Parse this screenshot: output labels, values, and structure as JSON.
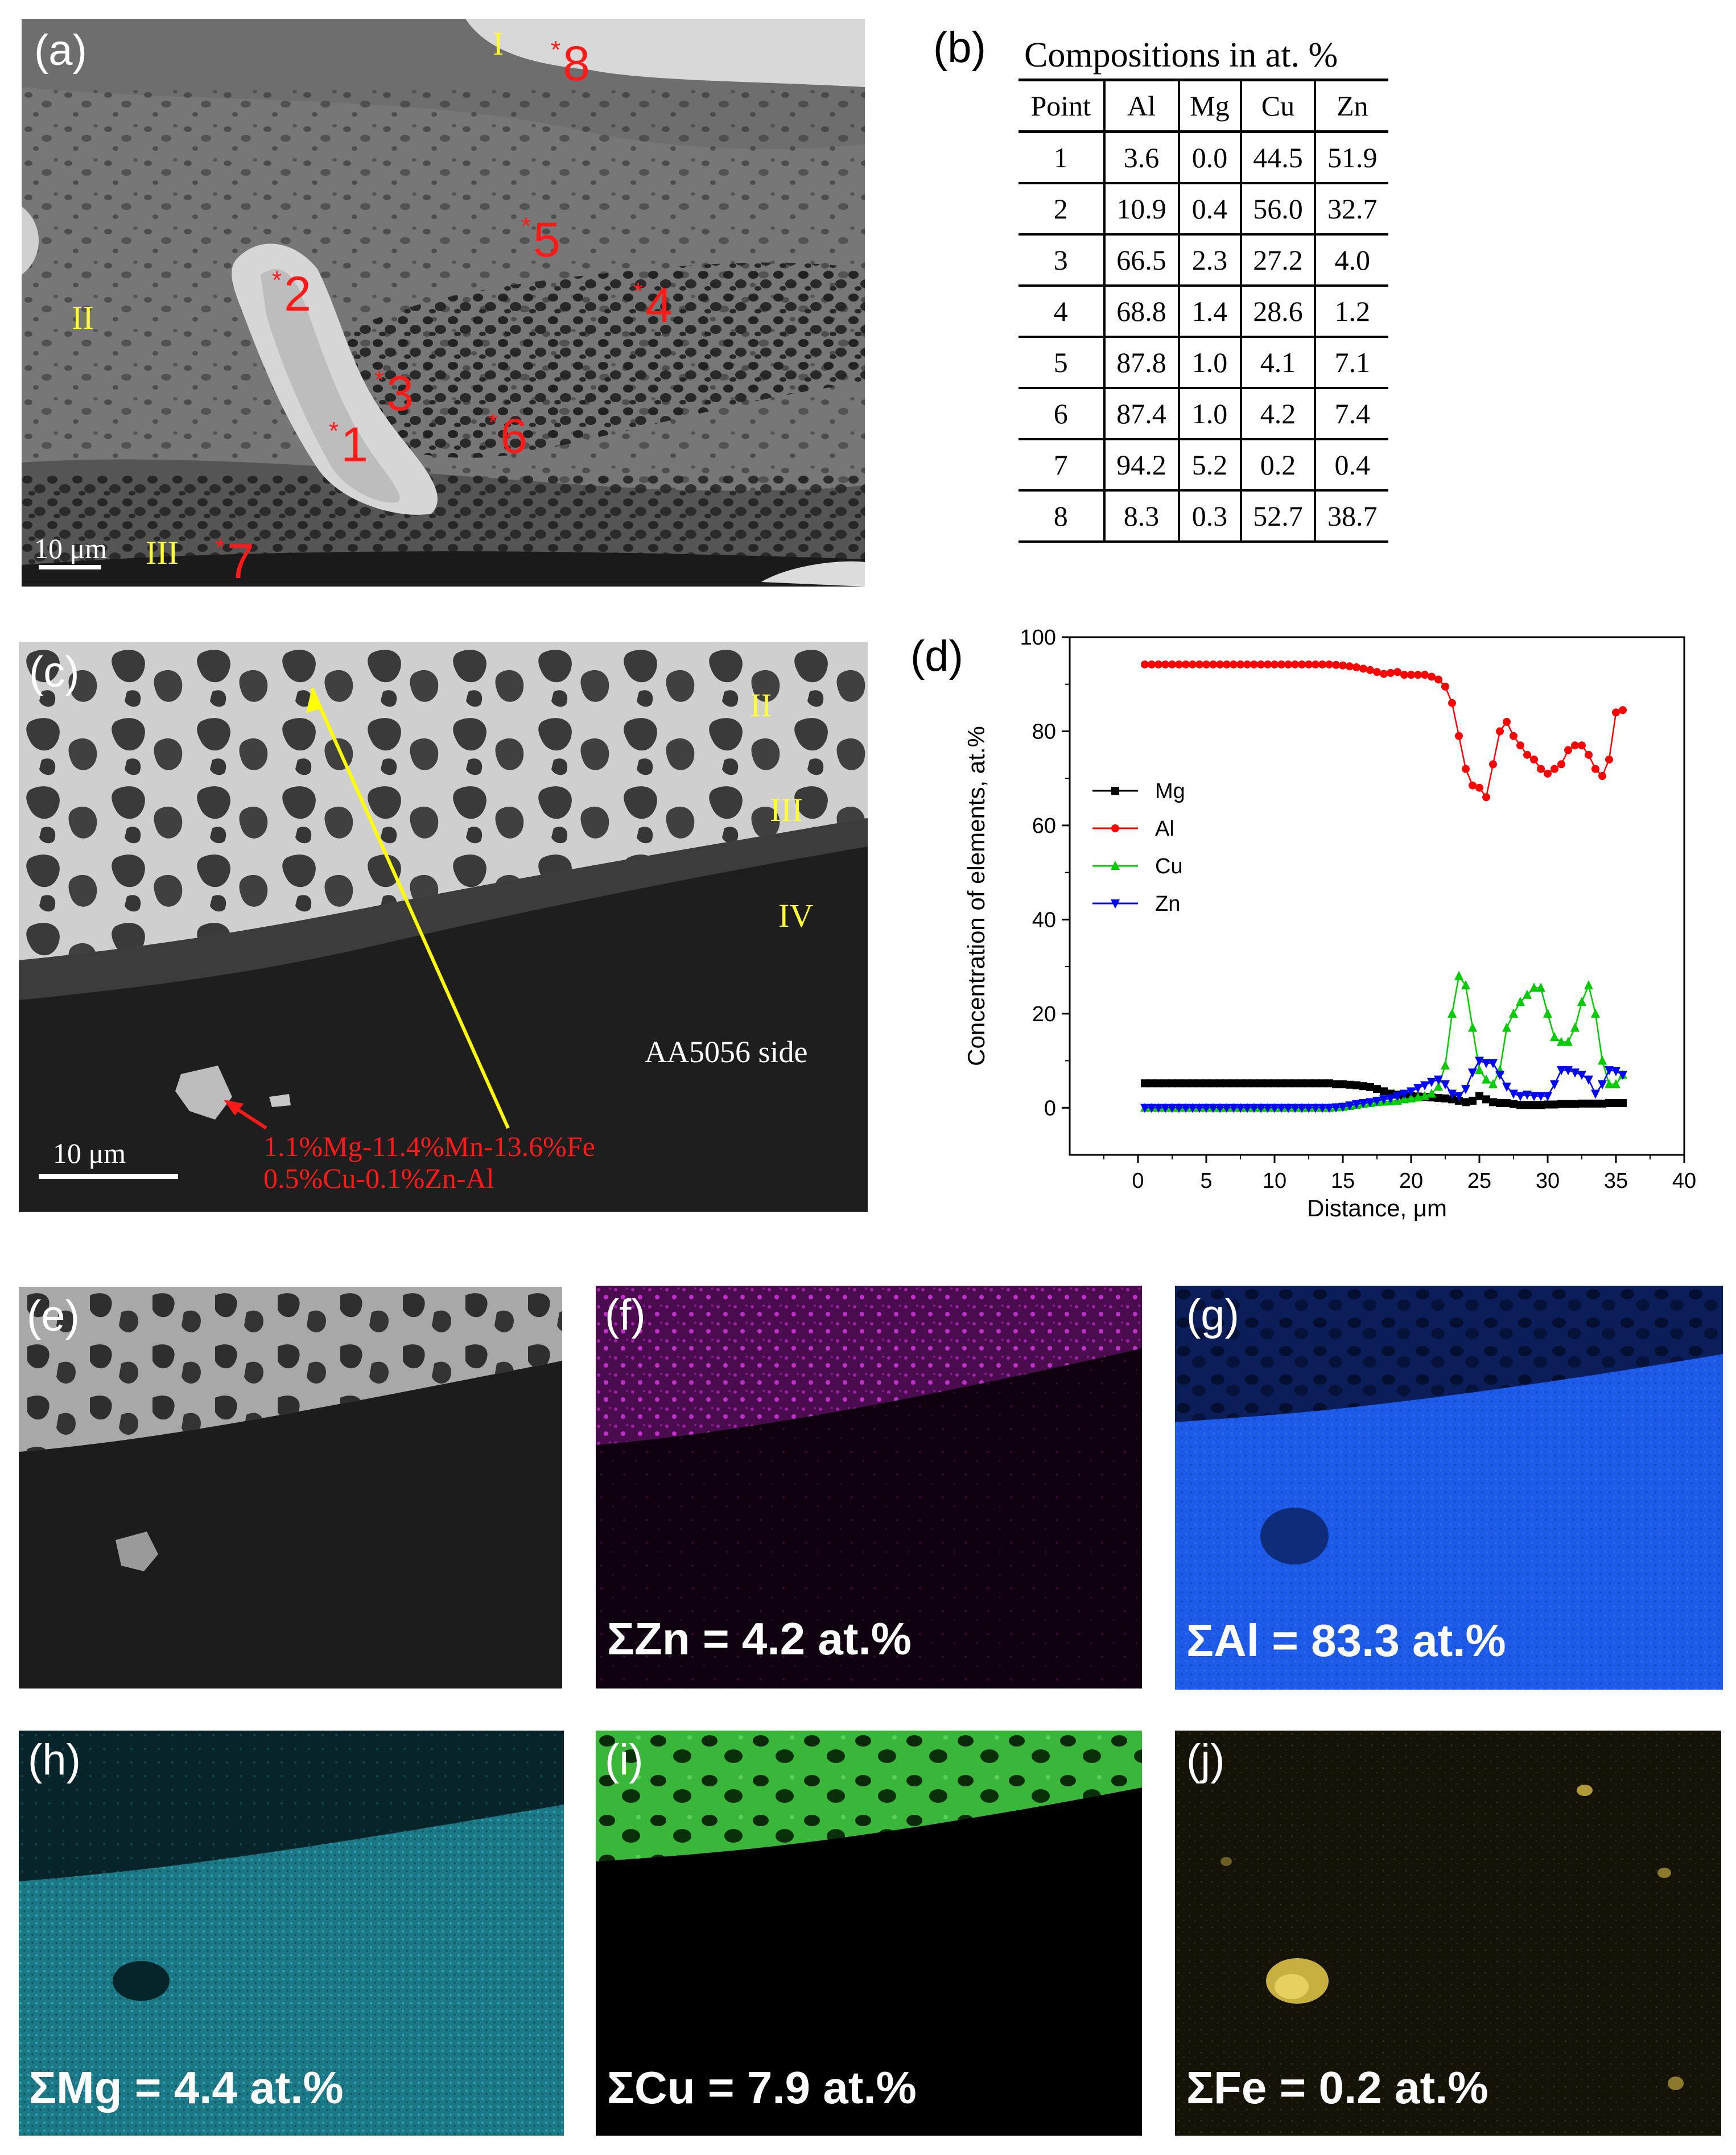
{
  "panel_a": {
    "label": "(a)",
    "regions": [
      "I",
      "II",
      "III"
    ],
    "points": [
      "8",
      "5",
      "2",
      "4",
      "3",
      "1",
      "6",
      "7"
    ],
    "scale": "10 μm"
  },
  "panel_b": {
    "label": "(b)",
    "title": "Compositions in at. %",
    "headers": [
      "Point",
      "Al",
      "Mg",
      "Cu",
      "Zn"
    ],
    "rows": [
      [
        "1",
        "3.6",
        "0.0",
        "44.5",
        "51.9"
      ],
      [
        "2",
        "10.9",
        "0.4",
        "56.0",
        "32.7"
      ],
      [
        "3",
        "66.5",
        "2.3",
        "27.2",
        "4.0"
      ],
      [
        "4",
        "68.8",
        "1.4",
        "28.6",
        "1.2"
      ],
      [
        "5",
        "87.8",
        "1.0",
        "4.1",
        "7.1"
      ],
      [
        "6",
        "87.4",
        "1.0",
        "4.2",
        "7.4"
      ],
      [
        "7",
        "94.2",
        "5.2",
        "0.2",
        "0.4"
      ],
      [
        "8",
        "8.3",
        "0.3",
        "52.7",
        "38.7"
      ]
    ]
  },
  "panel_c": {
    "label": "(c)",
    "regions": [
      "II",
      "III",
      "IV"
    ],
    "side_label": "AA5056 side",
    "scale": "10 μm",
    "annotation_line1": "1.1%Mg-11.4%Mn-13.6%Fe",
    "annotation_line2": "0.5%Cu-0.1%Zn-Al"
  },
  "panel_d": {
    "label": "(d)"
  },
  "chart_data": {
    "type": "line",
    "xlabel": "Distance, μm",
    "ylabel": "Concentration of elements, at.%",
    "xlim": [
      -5,
      40
    ],
    "ylim": [
      -10,
      100
    ],
    "xticks": [
      "0",
      "5",
      "10",
      "15",
      "20",
      "25",
      "30",
      "35",
      "40"
    ],
    "yticks": [
      "0",
      "20",
      "40",
      "60",
      "80",
      "100"
    ],
    "legend_position": "left-middle",
    "x": [
      0.5,
      1.0,
      1.5,
      2.0,
      2.5,
      3.0,
      3.5,
      4.0,
      4.5,
      5.0,
      5.5,
      6.0,
      6.5,
      7.0,
      7.5,
      8.0,
      8.5,
      9.0,
      9.5,
      10.0,
      10.5,
      11.0,
      11.5,
      12.0,
      12.5,
      13.0,
      13.5,
      14.0,
      14.5,
      15.0,
      15.5,
      16.0,
      16.5,
      17.0,
      17.5,
      18.0,
      18.5,
      19.0,
      19.5,
      20.0,
      20.5,
      21.0,
      21.5,
      22.0,
      22.5,
      23.0,
      23.5,
      24.0,
      24.5,
      25.0,
      25.5,
      26.0,
      26.5,
      27.0,
      27.5,
      28.0,
      28.5,
      29.0,
      29.5,
      30.0,
      30.5,
      31.0,
      31.5,
      32.0,
      32.5,
      33.0,
      33.5,
      34.0,
      34.5,
      35.0,
      35.5
    ],
    "series": [
      {
        "name": "Mg",
        "color": "#000000",
        "marker": "square",
        "values": [
          5.2,
          5.2,
          5.2,
          5.2,
          5.2,
          5.2,
          5.2,
          5.2,
          5.2,
          5.2,
          5.2,
          5.2,
          5.2,
          5.2,
          5.2,
          5.2,
          5.2,
          5.2,
          5.2,
          5.2,
          5.2,
          5.2,
          5.2,
          5.2,
          5.2,
          5.2,
          5.2,
          5.2,
          5.0,
          5.0,
          4.9,
          4.8,
          4.6,
          4.4,
          4.0,
          3.5,
          3.0,
          2.8,
          2.6,
          2.5,
          2.4,
          2.3,
          2.2,
          2.1,
          2.0,
          1.8,
          1.5,
          1.2,
          1.5,
          2.5,
          1.8,
          1.2,
          1.0,
          1.0,
          0.8,
          0.6,
          0.6,
          0.6,
          0.6,
          0.7,
          0.7,
          0.8,
          0.8,
          0.8,
          0.9,
          0.9,
          0.9,
          0.9,
          1.0,
          1.0,
          1.0
        ]
      },
      {
        "name": "Al",
        "color": "#ff0000",
        "marker": "circle",
        "values": [
          94.2,
          94.2,
          94.2,
          94.2,
          94.2,
          94.2,
          94.2,
          94.2,
          94.2,
          94.2,
          94.2,
          94.2,
          94.2,
          94.2,
          94.2,
          94.2,
          94.2,
          94.2,
          94.2,
          94.2,
          94.2,
          94.2,
          94.2,
          94.2,
          94.2,
          94.2,
          94.2,
          94.2,
          94.1,
          94.0,
          93.8,
          93.6,
          93.3,
          93.0,
          92.6,
          92.2,
          92.4,
          92.6,
          92.0,
          92.0,
          92.0,
          92.0,
          91.6,
          91.0,
          89.5,
          86.0,
          79.0,
          72.0,
          68.5,
          68.0,
          66.0,
          73.0,
          80.0,
          82.0,
          79.0,
          77.0,
          75.0,
          74.0,
          72.0,
          71.0,
          72.0,
          73.0,
          76.0,
          77.0,
          77.0,
          75.0,
          72.0,
          70.5,
          74.0,
          84.0,
          84.5
        ]
      },
      {
        "name": "Cu",
        "color": "#00cc00",
        "marker": "triangle-up",
        "values": [
          0,
          0,
          0,
          0,
          0,
          0,
          0,
          0,
          0,
          0,
          0,
          0,
          0,
          0,
          0,
          0,
          0,
          0,
          0,
          0,
          0,
          0,
          0,
          0,
          0,
          0,
          0,
          0,
          0.1,
          0.2,
          0.4,
          0.6,
          0.8,
          1.0,
          1.2,
          1.3,
          1.4,
          1.5,
          1.8,
          2.0,
          2.2,
          2.5,
          3.0,
          4.5,
          9.0,
          20.0,
          28.0,
          26.0,
          17.0,
          8.0,
          6.0,
          5.0,
          8.0,
          17.0,
          20.0,
          22.5,
          24.0,
          25.5,
          25.5,
          20.0,
          15.0,
          14.0,
          14.0,
          17.0,
          22.5,
          26.0,
          20.0,
          10.0,
          5.0,
          5.0,
          7.0
        ]
      },
      {
        "name": "Zn",
        "color": "#0000ff",
        "marker": "triangle-down",
        "values": [
          0,
          0,
          0,
          0,
          0,
          0,
          0,
          0,
          0,
          0,
          0,
          0,
          0,
          0,
          0,
          0,
          0,
          0,
          0,
          0,
          0,
          0,
          0,
          0,
          0,
          0,
          0,
          0,
          0.1,
          0.2,
          0.5,
          0.8,
          1.0,
          1.2,
          1.5,
          1.8,
          2.0,
          2.5,
          3.0,
          3.5,
          4.2,
          4.8,
          5.5,
          6.0,
          5.0,
          3.0,
          2.5,
          4.0,
          7.5,
          10.0,
          9.5,
          9.5,
          7.0,
          4.5,
          3.0,
          2.5,
          2.8,
          2.5,
          2.5,
          2.5,
          5.0,
          8.0,
          8.0,
          7.5,
          7.0,
          6.0,
          3.0,
          5.0,
          8.0,
          7.8,
          7.0
        ]
      }
    ]
  },
  "maps": {
    "e": {
      "label": "(e)",
      "text": ""
    },
    "f": {
      "label": "(f)",
      "text": "ΣZn = 4.2 at.%"
    },
    "g": {
      "label": "(g)",
      "text": "ΣAl = 83.3 at.%"
    },
    "h": {
      "label": "(h)",
      "text": "ΣMg = 4.4 at.%"
    },
    "i": {
      "label": "(i)",
      "text": "ΣCu = 7.9 at.%"
    },
    "j": {
      "label": "(j)",
      "text": "ΣFe = 0.2 at.%"
    }
  }
}
